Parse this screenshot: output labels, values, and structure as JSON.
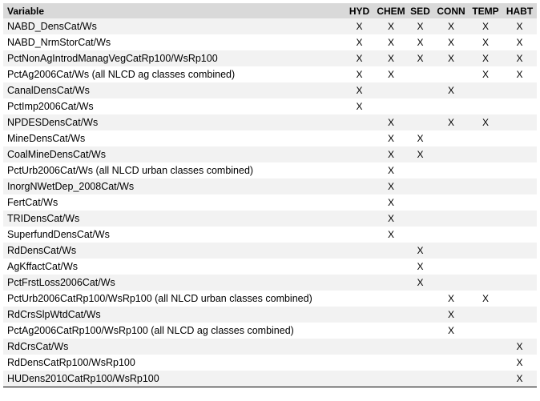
{
  "columns": [
    "Variable",
    "HYD",
    "CHEM",
    "SED",
    "CONN",
    "TEMP",
    "HABT"
  ],
  "rows": [
    {
      "variable": "NABD_DensCat/Ws",
      "marks": [
        "X",
        "X",
        "X",
        "X",
        "X",
        "X"
      ]
    },
    {
      "variable": "NABD_NrmStorCat/Ws",
      "marks": [
        "X",
        "X",
        "X",
        "X",
        "X",
        "X"
      ]
    },
    {
      "variable": "PctNonAgIntrodManagVegCatRp100/WsRp100",
      "marks": [
        "X",
        "X",
        "X",
        "X",
        "X",
        "X"
      ]
    },
    {
      "variable": "PctAg2006Cat/Ws (all NLCD ag classes combined)",
      "marks": [
        "X",
        "X",
        "",
        "",
        "X",
        "X"
      ]
    },
    {
      "variable": "CanalDensCat/Ws",
      "marks": [
        "X",
        "",
        "",
        "X",
        "",
        ""
      ]
    },
    {
      "variable": "PctImp2006Cat/Ws",
      "marks": [
        "X",
        "",
        "",
        "",
        "",
        ""
      ]
    },
    {
      "variable": "NPDESDensCat/Ws",
      "marks": [
        "",
        "X",
        "",
        "X",
        "X",
        ""
      ]
    },
    {
      "variable": "MineDensCat/Ws",
      "marks": [
        "",
        "X",
        "X",
        "",
        "",
        ""
      ]
    },
    {
      "variable": "CoalMineDensCat/Ws",
      "marks": [
        "",
        "X",
        "X",
        "",
        "",
        ""
      ]
    },
    {
      "variable": "PctUrb2006Cat/Ws (all NLCD urban classes combined)",
      "marks": [
        "",
        "X",
        "",
        "",
        "",
        ""
      ]
    },
    {
      "variable": "InorgNWetDep_2008Cat/Ws",
      "marks": [
        "",
        "X",
        "",
        "",
        "",
        ""
      ]
    },
    {
      "variable": "FertCat/Ws",
      "marks": [
        "",
        "X",
        "",
        "",
        "",
        ""
      ]
    },
    {
      "variable": "TRIDensCat/Ws",
      "marks": [
        "",
        "X",
        "",
        "",
        "",
        ""
      ]
    },
    {
      "variable": "SuperfundDensCat/Ws",
      "marks": [
        "",
        "X",
        "",
        "",
        "",
        ""
      ]
    },
    {
      "variable": "RdDensCat/Ws",
      "marks": [
        "",
        "",
        "X",
        "",
        "",
        ""
      ]
    },
    {
      "variable": "AgKffactCat/Ws",
      "marks": [
        "",
        "",
        "X",
        "",
        "",
        ""
      ]
    },
    {
      "variable": "PctFrstLoss2006Cat/Ws",
      "marks": [
        "",
        "",
        "X",
        "",
        "",
        ""
      ]
    },
    {
      "variable": "PctUrb2006CatRp100/WsRp100 (all NLCD urban classes combined)",
      "marks": [
        "",
        "",
        "",
        "X",
        "X",
        ""
      ]
    },
    {
      "variable": "RdCrsSlpWtdCat/Ws",
      "marks": [
        "",
        "",
        "",
        "X",
        "",
        ""
      ]
    },
    {
      "variable": "PctAg2006CatRp100/WsRp100 (all NLCD ag classes combined)",
      "marks": [
        "",
        "",
        "",
        "X",
        "",
        ""
      ]
    },
    {
      "variable": "RdCrsCat/Ws",
      "marks": [
        "",
        "",
        "",
        "",
        "",
        "X"
      ]
    },
    {
      "variable": "RdDensCatRp100/WsRp100",
      "marks": [
        "",
        "",
        "",
        "",
        "",
        "X"
      ]
    },
    {
      "variable": "HUDens2010CatRp100/WsRp100",
      "marks": [
        "",
        "",
        "",
        "",
        "",
        "X"
      ]
    }
  ],
  "colors": {
    "header_bg": "#d9d9d9",
    "row_shade": "#f2f2f2",
    "row_plain": "#ffffff"
  }
}
